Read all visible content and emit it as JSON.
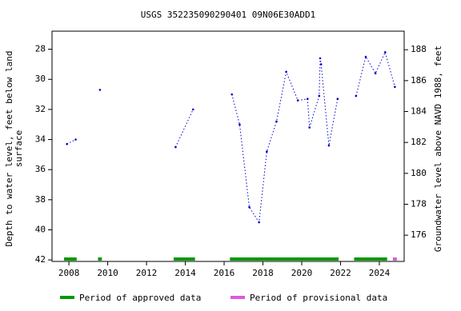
{
  "chart_data": {
    "type": "line",
    "title": "USGS 352235090290401 09N06E30ADD1",
    "ylabel": [
      "Depth to water level, feet below land",
      "surface"
    ],
    "y2label": "Groundwater level above NAVD 1988, feet",
    "x": [
      2007.9,
      2008.35,
      null,
      2009.6,
      null,
      2013.5,
      2014.4,
      null,
      2016.4,
      2016.8,
      2017.3,
      2017.8,
      2018.2,
      2018.7,
      2019.2,
      2019.8,
      2020.3,
      2020.4,
      2020.9,
      2020.95,
      2021.0,
      2021.4,
      2021.85,
      null,
      2022.8,
      2023.3,
      2023.8,
      2024.3,
      2024.8
    ],
    "series": [
      {
        "color": "#0000cc",
        "values": [
          34.3,
          34.0,
          null,
          30.7,
          null,
          34.5,
          32.0,
          null,
          31.0,
          33.0,
          38.5,
          39.5,
          34.8,
          32.8,
          29.5,
          31.4,
          31.3,
          33.2,
          31.1,
          28.6,
          29.0,
          34.4,
          31.3,
          null,
          31.1,
          28.5,
          29.6,
          28.2,
          30.5
        ]
      }
    ],
    "xlim": [
      2007.13,
      2025.28
    ],
    "xticks": [
      2008,
      2010,
      2012,
      2014,
      2016,
      2018,
      2020,
      2022,
      2024
    ],
    "ylim": [
      26.8,
      42.1
    ],
    "y_inverted": true,
    "yticks": [
      28,
      30,
      32,
      34,
      36,
      38,
      40,
      42
    ],
    "y2lim": [
      174.3,
      189.2
    ],
    "y2ticks": [
      176,
      178,
      180,
      182,
      184,
      186,
      188
    ],
    "periods": [
      {
        "name": "Period of approved data",
        "color": "#009900",
        "ranges": [
          [
            2007.75,
            2008.4
          ],
          [
            2009.5,
            2009.7
          ],
          [
            2013.4,
            2014.5
          ],
          [
            2016.3,
            2021.9
          ],
          [
            2022.7,
            2024.4
          ]
        ]
      },
      {
        "name": "Period of provisional data",
        "color": "#e055e0",
        "ranges": [
          [
            2024.7,
            2024.9
          ]
        ]
      }
    ]
  }
}
